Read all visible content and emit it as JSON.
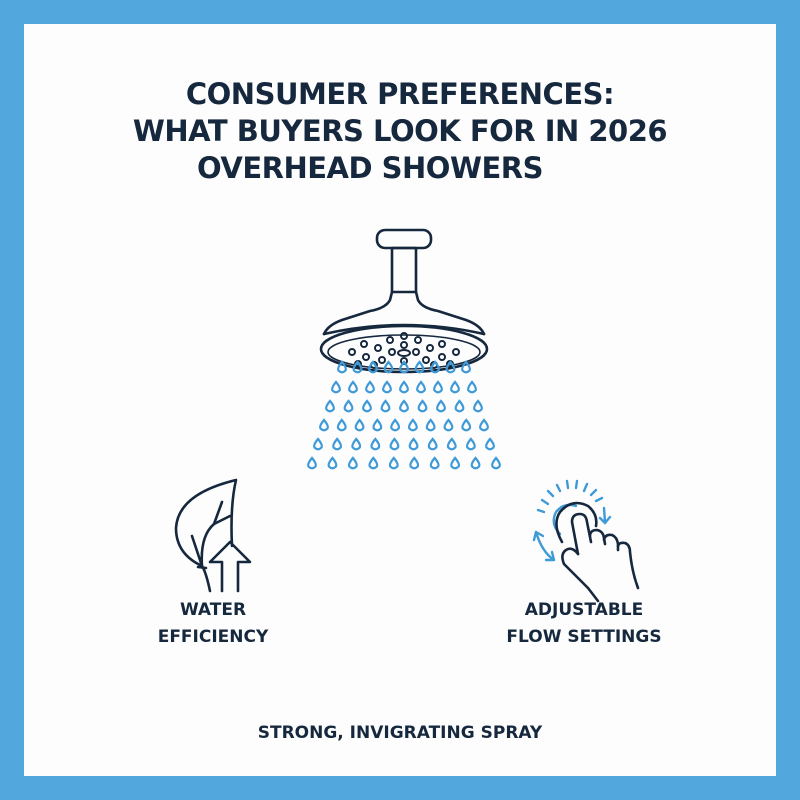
{
  "frame": {
    "border_color": "#52a8dc",
    "panel_color": "#fdfdfe"
  },
  "title": {
    "line1": "CONSUMER PREFERENCES:",
    "line2": "WHAT BUYERS LOOK FOR IN 2026",
    "line3": "OVERHEAD SHOWERS"
  },
  "illustration": {
    "icon": "shower-head-icon",
    "stroke_color": "#16283d",
    "water_color": "#3f9ad8"
  },
  "features": [
    {
      "icon": "leaf-arrow-up-icon",
      "line1": "WATER",
      "line2": "EFFICIENCY"
    },
    {
      "icon": "hand-tap-adjust-icon",
      "line1": "ADJUSTABLE",
      "line2": "FLOW SETTINGS"
    },
    {
      "line1": "STRONG, INVIGRATING SPRAY"
    }
  ]
}
